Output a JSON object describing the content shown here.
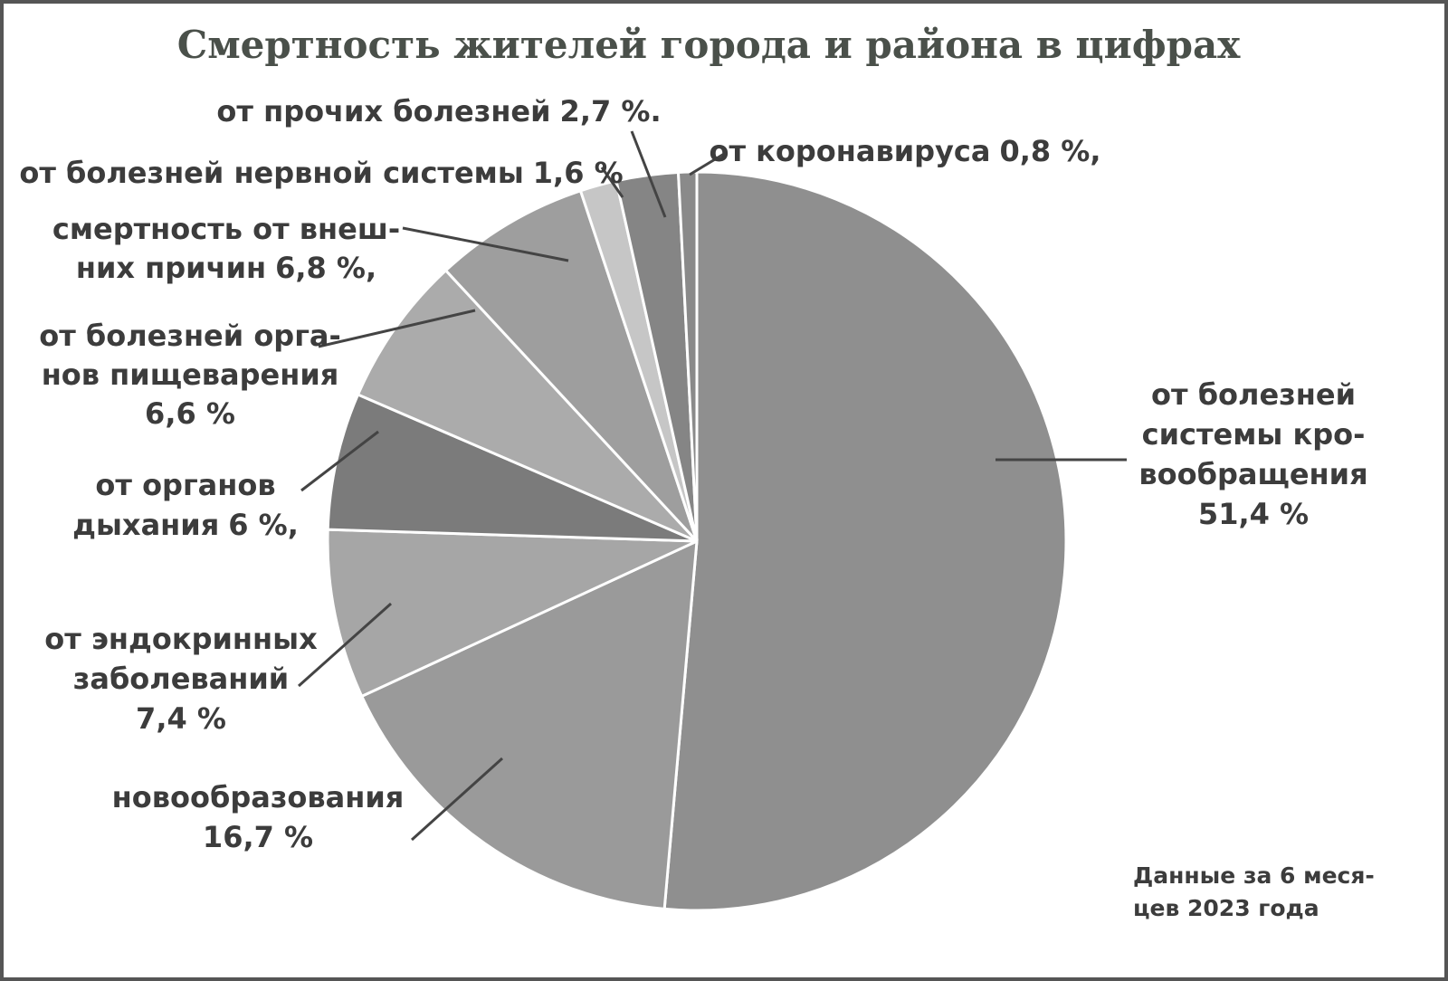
{
  "chart_data": {
    "type": "pie",
    "title": "Смертность жителей города и района в цифрах",
    "categories": [
      "от болезней\nсистемы кро-\nвообращения",
      "новообразования",
      "от эндокринных\nзаболеваний",
      "от органов\nдыхания",
      "от болезней орга-\nнов пищеварения",
      "смертность от внеш-\nних причин",
      "от болезней нервной системы",
      "от прочих болезней",
      "от коронавируса"
    ],
    "values": [
      51.4,
      16.7,
      7.4,
      6,
      6.6,
      6.8,
      1.6,
      2.7,
      0.8
    ],
    "value_labels": [
      "51,4 %",
      "16,7 %",
      "7,4 %",
      "6 %,",
      "6,6 %",
      "6,8 %,",
      "1,6 %",
      "2,7 %.",
      "0,8 %,"
    ],
    "colors": [
      "#8f8f8f",
      "#9a9a9a",
      "#a6a6a6",
      "#7b7b7b",
      "#ababab",
      "#9e9e9e",
      "#c6c6c6",
      "#858585",
      "#8a8a8a"
    ],
    "note": "Данные за 6 меся-\nцев 2023 года"
  }
}
